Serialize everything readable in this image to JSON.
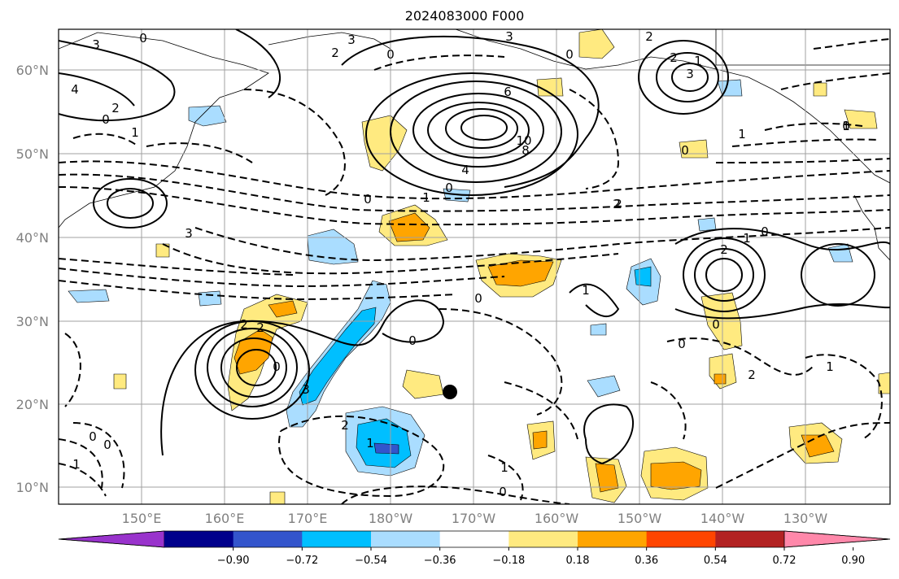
{
  "title": "2024083000 F000",
  "lat_labels": [
    "60°N",
    "50°N",
    "40°N",
    "30°N",
    "20°N",
    "10°N"
  ],
  "lon_labels": [
    "150°E",
    "160°E",
    "170°E",
    "180°W",
    "170°W",
    "160°W",
    "150°W",
    "140°W",
    "130°W"
  ],
  "colorbar": {
    "colors": [
      "#9933cc",
      "#00008b",
      "#3355cc",
      "#00bfff",
      "#aaddff",
      "#ffffff",
      "#ffea80",
      "#ffa500",
      "#ff4500",
      "#b22222",
      "#ff88aa"
    ],
    "tick_labels": [
      "−0.90",
      "−0.72",
      "−0.54",
      "−0.36",
      "−0.18",
      "0.18",
      "0.36",
      "0.54",
      "0.72",
      "0.90"
    ]
  },
  "contour_labels": [
    "3",
    "0",
    "4",
    "2",
    "0",
    "1",
    "3",
    "2",
    "0",
    "3",
    "2",
    "2",
    "1",
    "0",
    "6",
    "10",
    "8",
    "4",
    "0",
    "1",
    "2",
    "3",
    "1",
    "2",
    "0",
    "1",
    "0",
    "3",
    "2",
    "1",
    "0",
    "2",
    "2",
    "0",
    "3",
    "0",
    "0",
    "1",
    "0",
    "0",
    "2",
    "1",
    "2",
    "1",
    "0",
    "0",
    "1",
    "1",
    "0",
    "0"
  ],
  "marker": "tropical-cyclone-dot"
}
